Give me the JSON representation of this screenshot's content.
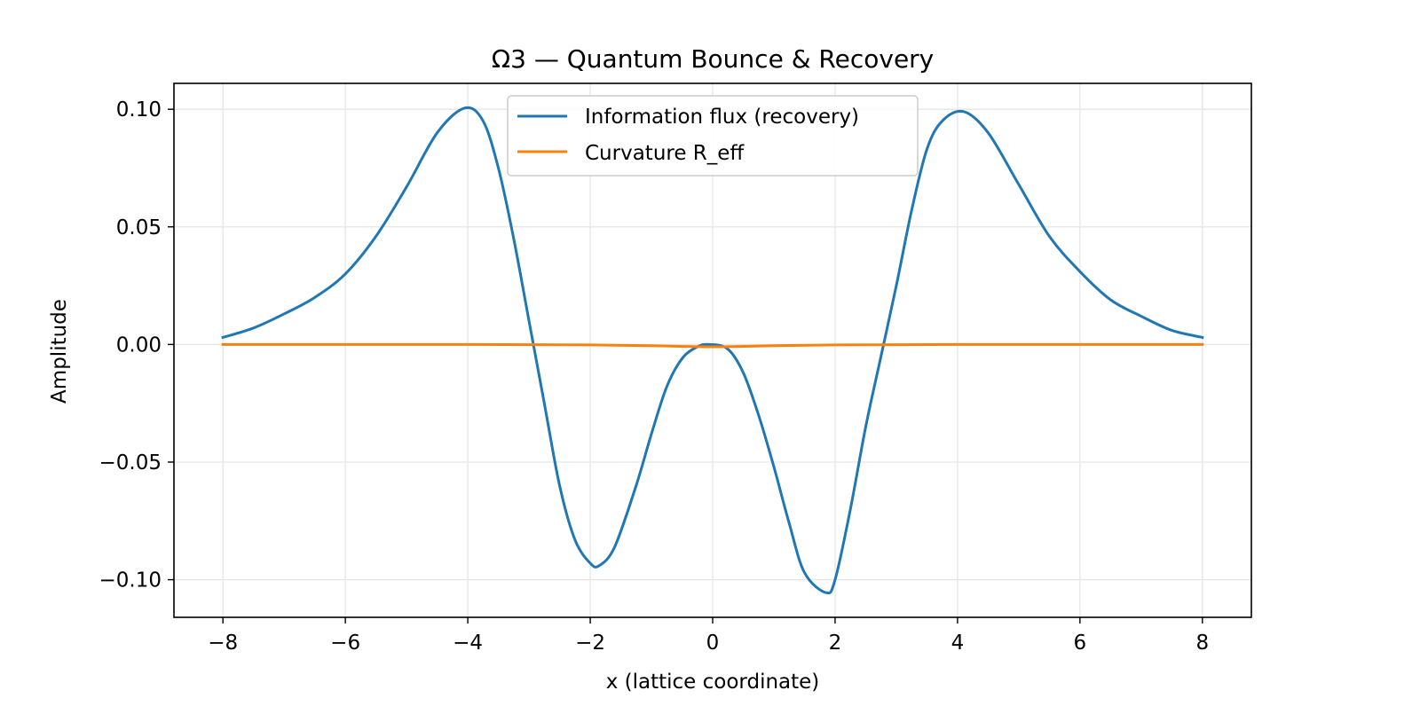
{
  "chart_data": {
    "type": "line",
    "title": "Ω3 — Quantum Bounce & Recovery",
    "xlabel": "x (lattice coordinate)",
    "ylabel": "Amplitude",
    "xlim": [
      -8.8,
      8.8
    ],
    "ylim": [
      -0.116,
      0.111
    ],
    "xticks": [
      -8,
      -6,
      -4,
      -2,
      0,
      2,
      4,
      6,
      8
    ],
    "xtick_labels": [
      "−8",
      "−6",
      "−4",
      "−2",
      "0",
      "2",
      "4",
      "6",
      "8"
    ],
    "yticks": [
      0.1,
      0.05,
      0.0,
      -0.05,
      -0.1
    ],
    "ytick_labels": [
      "0.10",
      "0.05",
      "0.00",
      "−0.05",
      "−0.10"
    ],
    "grid": true,
    "legend_position": "upper-center",
    "series": [
      {
        "name": "Information flux (recovery)",
        "color": "#1f77b4",
        "x": [
          -8,
          -7.5,
          -7,
          -6.5,
          -6,
          -5.5,
          -5,
          -4.5,
          -4.05,
          -3.75,
          -3.5,
          -3.25,
          -3,
          -2.75,
          -2.5,
          -2.25,
          -2,
          -1.85,
          -1.6,
          -1.25,
          -1,
          -0.75,
          -0.5,
          -0.25,
          -0.05,
          0.25,
          0.5,
          0.75,
          1,
          1.25,
          1.5,
          1.85,
          2,
          2.25,
          2.5,
          2.75,
          3,
          3.25,
          3.5,
          3.75,
          4.1,
          4.5,
          5,
          5.5,
          6,
          6.5,
          7,
          7.5,
          8
        ],
        "y": [
          0.003,
          0.007,
          0.013,
          0.02,
          0.03,
          0.046,
          0.067,
          0.09,
          0.1005,
          0.095,
          0.075,
          0.045,
          0.01,
          -0.025,
          -0.06,
          -0.083,
          -0.093,
          -0.094,
          -0.086,
          -0.06,
          -0.038,
          -0.018,
          -0.006,
          -0.001,
          0.0,
          -0.002,
          -0.012,
          -0.03,
          -0.052,
          -0.076,
          -0.097,
          -0.1055,
          -0.1,
          -0.07,
          -0.035,
          -0.005,
          0.025,
          0.057,
          0.083,
          0.095,
          0.099,
          0.09,
          0.068,
          0.046,
          0.031,
          0.019,
          0.012,
          0.006,
          0.003
        ]
      },
      {
        "name": "Curvature R_eff",
        "color": "#ff7f0e",
        "x": [
          -8,
          -4,
          -2,
          -1,
          -0.5,
          0,
          0.5,
          1,
          2,
          4,
          8
        ],
        "y": [
          0.0,
          0.0,
          -0.0002,
          -0.0005,
          -0.0008,
          -0.001,
          -0.0008,
          -0.0005,
          -0.0002,
          0.0,
          0.0
        ]
      }
    ]
  }
}
